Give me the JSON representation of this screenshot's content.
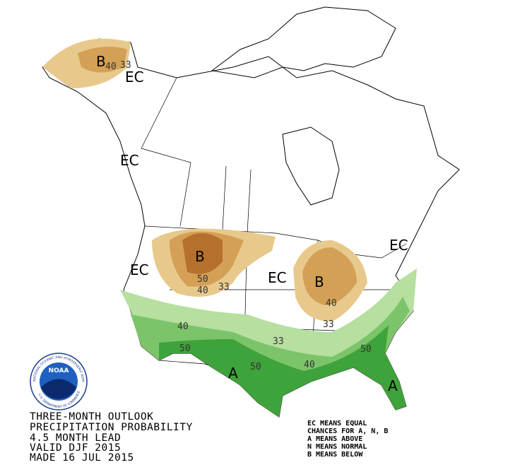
{
  "map_labels": [
    "EC",
    "EC",
    "EC",
    "EC",
    "EC",
    "B",
    "B",
    "B",
    "A",
    "A"
  ],
  "contour_labels": [
    40,
    33,
    50,
    40,
    33,
    40,
    50,
    33,
    50,
    40,
    50,
    40,
    33
  ],
  "title_lines": [
    "THREE-MONTH OUTLOOK",
    "PRECIPITATION PROBABILITY",
    "4.5 MONTH LEAD",
    "VALID DJF 2015",
    "MADE 16 JUL 2015"
  ],
  "legend_lines": [
    "EC MEANS EQUAL",
    "CHANCES FOR A, N, B",
    "A MEANS ABOVE",
    "N MEANS NORMAL",
    "B MEANS BELOW"
  ],
  "logo": {
    "name": "NOAA",
    "ring_top": "NATIONAL OCEANIC AND ATMOSPHERIC ADMINISTRATION",
    "ring_bottom": "U.S. DEPARTMENT OF COMMERCE"
  }
}
